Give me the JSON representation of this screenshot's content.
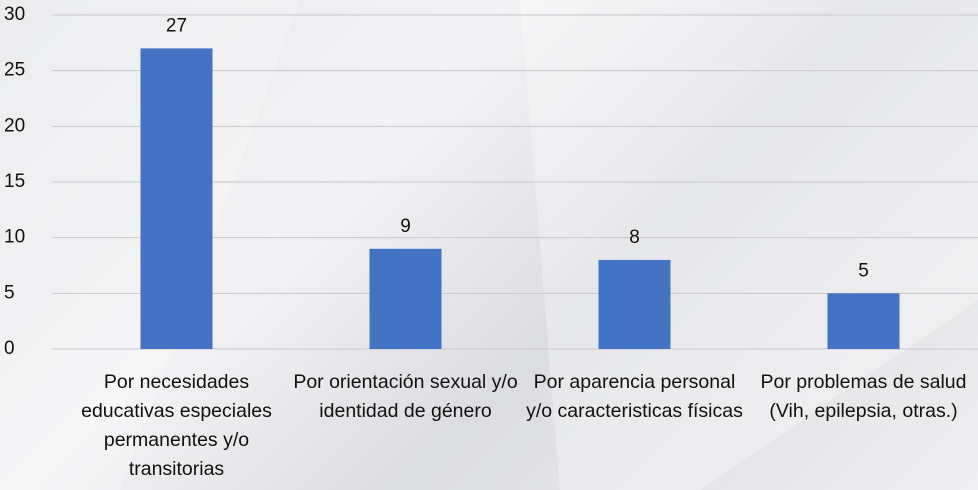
{
  "chart_data": {
    "type": "bar",
    "categories": [
      "Por necesidades educativas especiales permanentes y/o transitorias",
      "Por orientación sexual y/o identidad de género",
      "Por aparencia personal y/o caracteristicas físicas",
      "Por problemas de salud (Vih, epilepsia, otras.)"
    ],
    "values": [
      27,
      9,
      8,
      5
    ],
    "color": "#4472c4",
    "ylim": [
      0,
      30
    ],
    "yticks": [
      0,
      5,
      10,
      15,
      20,
      25,
      30
    ],
    "grid": true
  }
}
